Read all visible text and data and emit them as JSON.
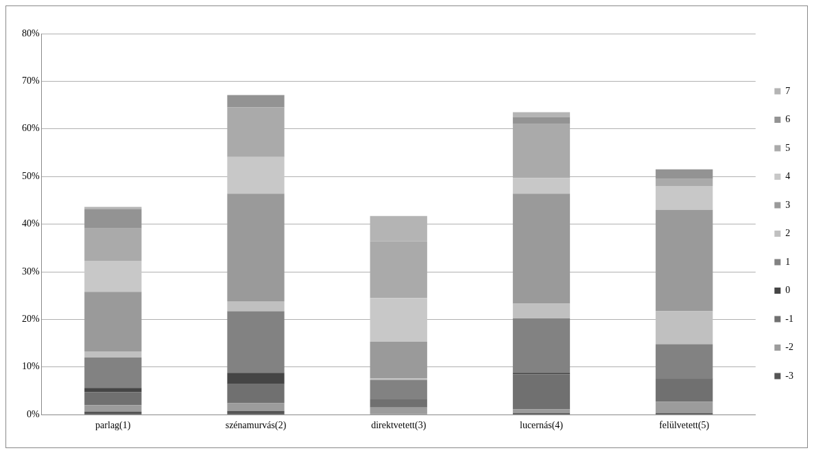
{
  "chart_data": {
    "type": "bar",
    "stacked": true,
    "categories": [
      "parlag(1)",
      "szénamurvás(2)",
      "direktvetett(3)",
      "lucernás(4)",
      "felülvetett(5)"
    ],
    "series": [
      {
        "name": "-3",
        "color": "#555555",
        "values": [
          0.6,
          0.8,
          0,
          0.3,
          0.3
        ]
      },
      {
        "name": "-2",
        "color": "#9c9c9c",
        "values": [
          1.4,
          1.6,
          1.5,
          0.8,
          2.4
        ]
      },
      {
        "name": "-1",
        "color": "#707070",
        "values": [
          2.7,
          4.0,
          1.7,
          7.4,
          4.7
        ]
      },
      {
        "name": "0",
        "color": "#454545",
        "values": [
          0.9,
          2.4,
          0,
          0.3,
          0.2
        ]
      },
      {
        "name": "1",
        "color": "#828282",
        "values": [
          6.4,
          12.9,
          4.1,
          11.4,
          7.2
        ]
      },
      {
        "name": "2",
        "color": "#c0c0c0",
        "values": [
          1.3,
          2.1,
          0.3,
          3.1,
          6.9
        ]
      },
      {
        "name": "3",
        "color": "#9a9a9a",
        "values": [
          12.5,
          22.6,
          7.7,
          23.1,
          21.3
        ]
      },
      {
        "name": "4",
        "color": "#c8c8c8",
        "values": [
          6.5,
          7.7,
          9.2,
          3.3,
          5.0
        ]
      },
      {
        "name": "5",
        "color": "#aaaaaa",
        "values": [
          6.8,
          10.4,
          11.9,
          11.3,
          1.5
        ]
      },
      {
        "name": "6",
        "color": "#939393",
        "values": [
          4.1,
          2.6,
          0,
          1.5,
          2.0
        ]
      },
      {
        "name": "7",
        "color": "#b4b4b4",
        "values": [
          0.4,
          0,
          5.3,
          1.0,
          0
        ]
      }
    ],
    "ylim": [
      0,
      80
    ],
    "yticks": [
      {
        "value": 0,
        "label": "0%"
      },
      {
        "value": 10,
        "label": "10%"
      },
      {
        "value": 20,
        "label": "20%"
      },
      {
        "value": 30,
        "label": "30%"
      },
      {
        "value": 40,
        "label": "40%"
      },
      {
        "value": 50,
        "label": "50%"
      },
      {
        "value": 60,
        "label": "60%"
      },
      {
        "value": 70,
        "label": "70%"
      },
      {
        "value": 80,
        "label": "80%"
      }
    ],
    "grid": "y",
    "legend": "right"
  }
}
